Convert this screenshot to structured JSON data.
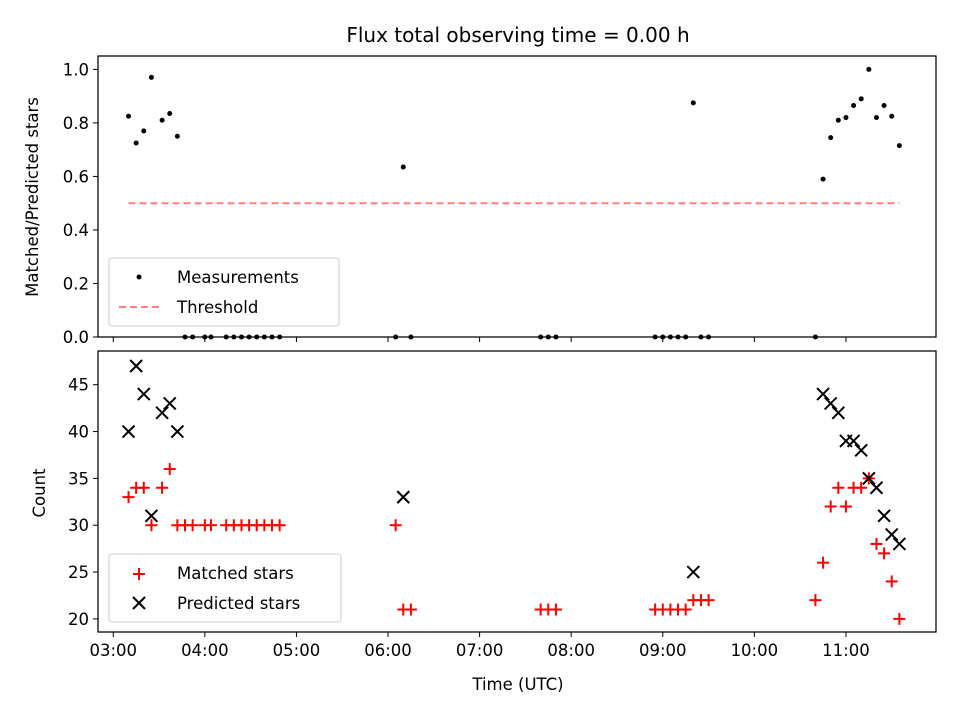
{
  "title": "Flux total observing time = 0.00 h",
  "colors": {
    "measurements": "#000000",
    "threshold": "#ff7f7f",
    "matched": "#ff0000",
    "predicted": "#000000"
  },
  "chart_data": [
    {
      "type": "scatter",
      "ylabel": "Matched/Predicted stars",
      "xlim": [
        "02:50",
        "11:59"
      ],
      "ylim": [
        0,
        1.05
      ],
      "yticks": [
        "0.0",
        "0.2",
        "0.4",
        "0.6",
        "0.8",
        "1.0"
      ],
      "legend": {
        "placement": "lower-left",
        "entries": [
          "Measurements",
          "Threshold"
        ]
      },
      "series": [
        {
          "name": "Measurements",
          "marker": "dot",
          "x": [
            "03:10",
            "03:15",
            "03:20",
            "03:25",
            "03:32",
            "03:37",
            "03:42",
            "03:47",
            "03:52",
            "04:00",
            "04:04",
            "04:14",
            "04:19",
            "04:24",
            "04:29",
            "04:34",
            "04:39",
            "04:44",
            "04:49",
            "06:05",
            "06:10",
            "06:15",
            "07:40",
            "07:45",
            "07:50",
            "08:55",
            "09:00",
            "09:05",
            "09:10",
            "09:15",
            "09:20",
            "09:25",
            "09:30",
            "10:40",
            "10:45",
            "10:50",
            "10:55",
            "11:00",
            "11:05",
            "11:10",
            "11:15",
            "11:20",
            "11:25",
            "11:30",
            "11:35"
          ],
          "y": [
            0.825,
            0.725,
            0.77,
            0.97,
            0.81,
            0.835,
            0.75,
            0.0,
            0.0,
            0.0,
            0.0,
            0.0,
            0.0,
            0.0,
            0.0,
            0.0,
            0.0,
            0.0,
            0.0,
            0.0,
            0.635,
            0.0,
            0.0,
            0.0,
            0.0,
            0.0,
            0.0,
            0.0,
            0.0,
            0.0,
            0.875,
            0.0,
            0.0,
            0.0,
            0.59,
            0.745,
            0.81,
            0.82,
            0.865,
            0.89,
            1.0,
            0.82,
            0.865,
            0.825,
            0.715
          ]
        },
        {
          "name": "Threshold",
          "style": "dashed",
          "x": [
            "03:10",
            "11:35"
          ],
          "y": [
            0.5,
            0.5
          ]
        }
      ]
    },
    {
      "type": "scatter",
      "xlabel": "Time (UTC)",
      "ylabel": "Count",
      "xlim": [
        "02:50",
        "11:59"
      ],
      "ylim": [
        18.6,
        48.6
      ],
      "xticks": [
        "03:00",
        "04:00",
        "05:00",
        "06:00",
        "07:00",
        "08:00",
        "09:00",
        "10:00",
        "11:00"
      ],
      "yticks": [
        "20",
        "25",
        "30",
        "35",
        "40",
        "45"
      ],
      "legend": {
        "placement": "lower-left",
        "entries": [
          "Matched stars",
          "Predicted stars"
        ]
      },
      "series": [
        {
          "name": "Matched stars",
          "marker": "plus",
          "x": [
            "03:10",
            "03:15",
            "03:20",
            "03:25",
            "03:32",
            "03:37",
            "03:42",
            "03:47",
            "03:52",
            "04:00",
            "04:04",
            "04:14",
            "04:19",
            "04:24",
            "04:29",
            "04:34",
            "04:39",
            "04:44",
            "04:49",
            "06:05",
            "06:10",
            "06:15",
            "07:40",
            "07:45",
            "07:50",
            "08:55",
            "09:00",
            "09:05",
            "09:10",
            "09:15",
            "09:20",
            "09:25",
            "09:30",
            "10:40",
            "10:45",
            "10:50",
            "10:55",
            "11:00",
            "11:05",
            "11:10",
            "11:15",
            "11:20",
            "11:25",
            "11:30",
            "11:35"
          ],
          "y": [
            33,
            34,
            34,
            30,
            34,
            36,
            30,
            30,
            30,
            30,
            30,
            30,
            30,
            30,
            30,
            30,
            30,
            30,
            30,
            30,
            21,
            21,
            21,
            21,
            21,
            21,
            21,
            21,
            21,
            21,
            22,
            22,
            22,
            22,
            26,
            32,
            34,
            32,
            34,
            34,
            35,
            28,
            27,
            24,
            20
          ]
        },
        {
          "name": "Predicted stars",
          "marker": "x",
          "x": [
            "03:10",
            "03:15",
            "03:20",
            "03:25",
            "03:32",
            "03:37",
            "03:42",
            "06:10",
            "09:20",
            "10:45",
            "10:50",
            "10:55",
            "11:00",
            "11:05",
            "11:10",
            "11:15",
            "11:20",
            "11:25",
            "11:30",
            "11:35"
          ],
          "y": [
            40,
            47,
            44,
            31,
            42,
            43,
            40,
            33,
            25,
            44,
            43,
            42,
            39,
            39,
            38,
            35,
            34,
            31,
            29,
            28
          ]
        }
      ]
    }
  ]
}
